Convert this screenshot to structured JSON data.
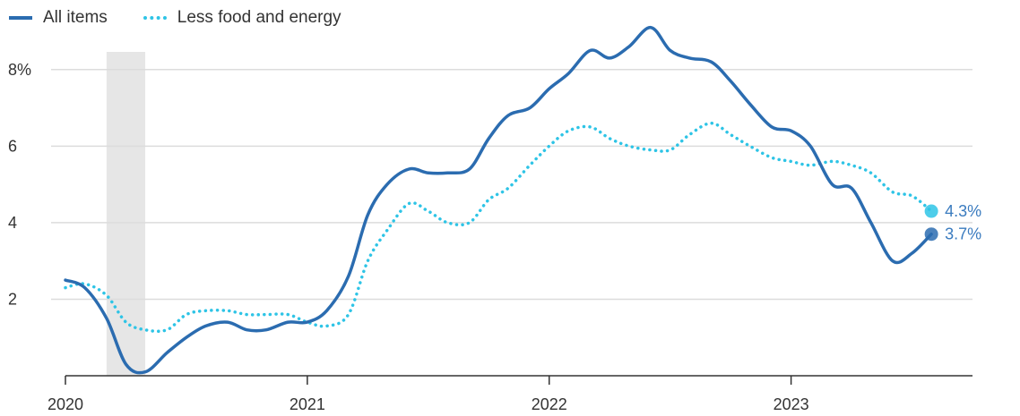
{
  "legend": {
    "items": [
      {
        "label": "All items",
        "style": "solid",
        "color": "#2b6cb0"
      },
      {
        "label": "Less food and energy",
        "style": "dotted",
        "color": "#2ec4e6"
      }
    ]
  },
  "chart_data": {
    "type": "line",
    "title": "",
    "xlabel": "",
    "ylabel": "",
    "x_range": [
      2020.0,
      2023.75
    ],
    "ylim": [
      0,
      9
    ],
    "y_ticks": [
      {
        "value": 2,
        "label": "2"
      },
      {
        "value": 4,
        "label": "4"
      },
      {
        "value": 6,
        "label": "6"
      },
      {
        "value": 8,
        "label": "8%"
      }
    ],
    "x_ticks": [
      {
        "value": 2020,
        "label": "2020"
      },
      {
        "value": 2021,
        "label": "2021"
      },
      {
        "value": 2022,
        "label": "2022"
      },
      {
        "value": 2023,
        "label": "2023"
      }
    ],
    "grid": "horizontal",
    "legend_position": "top-left",
    "shaded_region": {
      "x_start": 2020.17,
      "x_end": 2020.33,
      "color": "#e6e6e6"
    },
    "series": [
      {
        "name": "All items",
        "style": "solid",
        "color": "#2b6cb0",
        "x": [
          2020.0,
          2020.08,
          2020.17,
          2020.25,
          2020.33,
          2020.42,
          2020.5,
          2020.58,
          2020.67,
          2020.75,
          2020.83,
          2020.92,
          2021.0,
          2021.08,
          2021.17,
          2021.25,
          2021.33,
          2021.42,
          2021.5,
          2021.58,
          2021.67,
          2021.75,
          2021.83,
          2021.92,
          2022.0,
          2022.08,
          2022.17,
          2022.25,
          2022.33,
          2022.42,
          2022.5,
          2022.58,
          2022.67,
          2022.75,
          2022.83,
          2022.92,
          2023.0,
          2023.08,
          2023.17,
          2023.25,
          2023.33,
          2023.42,
          2023.5,
          2023.58
        ],
        "values": [
          2.5,
          2.3,
          1.5,
          0.3,
          0.1,
          0.6,
          1.0,
          1.3,
          1.4,
          1.2,
          1.2,
          1.4,
          1.4,
          1.7,
          2.6,
          4.2,
          5.0,
          5.4,
          5.3,
          5.3,
          5.4,
          6.2,
          6.8,
          7.0,
          7.5,
          7.9,
          8.5,
          8.3,
          8.6,
          9.1,
          8.5,
          8.3,
          8.2,
          7.7,
          7.1,
          6.5,
          6.4,
          6.0,
          5.0,
          4.9,
          4.0,
          3.0,
          3.2,
          3.7
        ]
      },
      {
        "name": "Less food and energy",
        "style": "dotted",
        "color": "#2ec4e6",
        "x": [
          2020.0,
          2020.08,
          2020.17,
          2020.25,
          2020.33,
          2020.42,
          2020.5,
          2020.58,
          2020.67,
          2020.75,
          2020.83,
          2020.92,
          2021.0,
          2021.08,
          2021.17,
          2021.25,
          2021.33,
          2021.42,
          2021.5,
          2021.58,
          2021.67,
          2021.75,
          2021.83,
          2021.92,
          2022.0,
          2022.08,
          2022.17,
          2022.25,
          2022.33,
          2022.42,
          2022.5,
          2022.58,
          2022.67,
          2022.75,
          2022.83,
          2022.92,
          2023.0,
          2023.08,
          2023.17,
          2023.25,
          2023.33,
          2023.42,
          2023.5,
          2023.58
        ],
        "values": [
          2.3,
          2.4,
          2.1,
          1.4,
          1.2,
          1.2,
          1.6,
          1.7,
          1.7,
          1.6,
          1.6,
          1.6,
          1.4,
          1.3,
          1.6,
          3.0,
          3.8,
          4.5,
          4.3,
          4.0,
          4.0,
          4.6,
          4.9,
          5.5,
          6.0,
          6.4,
          6.5,
          6.2,
          6.0,
          5.9,
          5.9,
          6.3,
          6.6,
          6.3,
          6.0,
          5.7,
          5.6,
          5.5,
          5.6,
          5.5,
          5.3,
          4.8,
          4.7,
          4.3
        ]
      }
    ],
    "end_labels": [
      {
        "series": "Less food and energy",
        "label": "4.3%",
        "value": 4.3,
        "color": "#2ec4e6",
        "text_color": "#3a7bbf"
      },
      {
        "series": "All items",
        "label": "3.7%",
        "value": 3.7,
        "color": "#2b6cb0",
        "text_color": "#3a7bbf"
      }
    ]
  }
}
